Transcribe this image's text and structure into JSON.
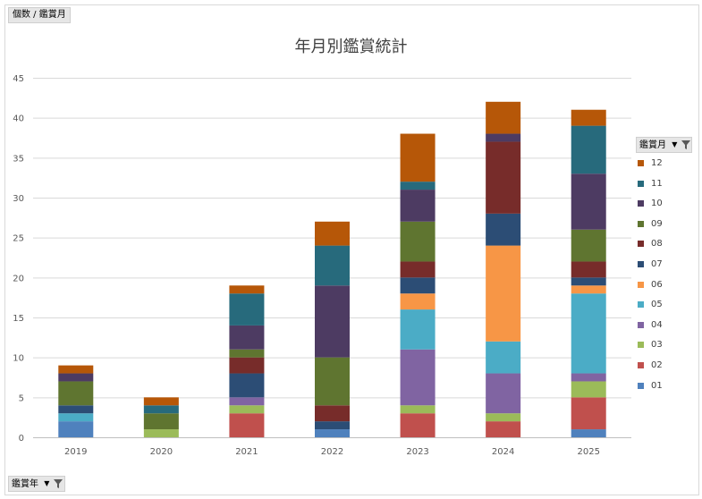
{
  "value_field_label": "個数 / 鑑賞月",
  "row_field_label": "鑑賞年",
  "legend_field_label": "鑑賞月",
  "chart_data": {
    "type": "bar",
    "stacked": true,
    "title": "年月別鑑賞統計",
    "xlabel": "",
    "ylabel": "",
    "ylim": [
      0,
      45
    ],
    "yticks": [
      "0",
      "5",
      "10",
      "15",
      "20",
      "25",
      "30",
      "35",
      "40",
      "45"
    ],
    "categories": [
      "2019",
      "2020",
      "2021",
      "2022",
      "2023",
      "2024",
      "2025"
    ],
    "series": [
      {
        "name": "01",
        "color": "#4F81BD",
        "values": [
          2,
          0,
          0,
          1,
          0,
          0,
          1
        ]
      },
      {
        "name": "02",
        "color": "#C0504D",
        "values": [
          0,
          0,
          3,
          0,
          3,
          2,
          4
        ]
      },
      {
        "name": "03",
        "color": "#9BBB59",
        "values": [
          0,
          1,
          1,
          0,
          1,
          1,
          2
        ]
      },
      {
        "name": "04",
        "color": "#8064A2",
        "values": [
          0,
          0,
          1,
          0,
          7,
          5,
          1
        ]
      },
      {
        "name": "05",
        "color": "#4BACC6",
        "values": [
          1,
          0,
          0,
          0,
          5,
          4,
          10
        ]
      },
      {
        "name": "06",
        "color": "#F79646",
        "values": [
          0,
          0,
          0,
          0,
          2,
          12,
          1
        ]
      },
      {
        "name": "07",
        "color": "#2C4D75",
        "values": [
          1,
          0,
          3,
          1,
          2,
          4,
          1
        ]
      },
      {
        "name": "08",
        "color": "#772C2A",
        "values": [
          0,
          0,
          2,
          2,
          2,
          9,
          2
        ]
      },
      {
        "name": "09",
        "color": "#5F7530",
        "values": [
          3,
          2,
          1,
          6,
          5,
          0,
          4
        ]
      },
      {
        "name": "10",
        "color": "#4D3B62",
        "values": [
          1,
          0,
          3,
          9,
          4,
          1,
          7
        ]
      },
      {
        "name": "11",
        "color": "#276A7C",
        "values": [
          0,
          1,
          4,
          5,
          1,
          0,
          6
        ]
      },
      {
        "name": "12",
        "color": "#B65708",
        "values": [
          1,
          1,
          1,
          3,
          6,
          4,
          2
        ]
      }
    ],
    "legend_position": "right",
    "grid": true
  }
}
